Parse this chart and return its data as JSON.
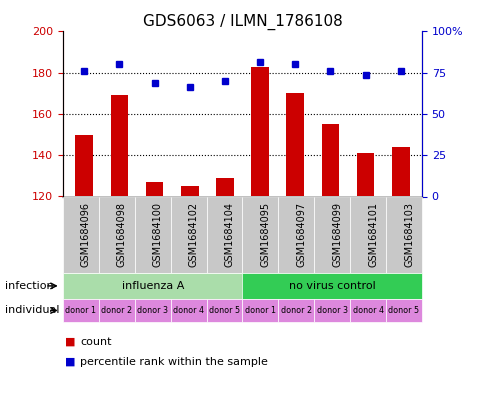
{
  "title": "GDS6063 / ILMN_1786108",
  "samples": [
    "GSM1684096",
    "GSM1684098",
    "GSM1684100",
    "GSM1684102",
    "GSM1684104",
    "GSM1684095",
    "GSM1684097",
    "GSM1684099",
    "GSM1684101",
    "GSM1684103"
  ],
  "counts": [
    150,
    169,
    127,
    125,
    129,
    183,
    170,
    155,
    141,
    144
  ],
  "percentiles": [
    181,
    184,
    175,
    173,
    176,
    185,
    184,
    181,
    179,
    181
  ],
  "ylim_left": [
    120,
    200
  ],
  "ylim_right": [
    0,
    100
  ],
  "yticks_left": [
    120,
    140,
    160,
    180,
    200
  ],
  "yticks_right": [
    0,
    25,
    50,
    75,
    100
  ],
  "ytick_labels_right": [
    "0",
    "25",
    "50",
    "75",
    "100%"
  ],
  "bar_color": "#cc0000",
  "dot_color": "#0000cc",
  "infection_groups": [
    {
      "label": "influenza A",
      "start": 0,
      "end": 5,
      "color": "#aaddaa"
    },
    {
      "label": "no virus control",
      "start": 5,
      "end": 10,
      "color": "#33cc55"
    }
  ],
  "individual_labels": [
    "donor 1",
    "donor 2",
    "donor 3",
    "donor 4",
    "donor 5",
    "donor 1",
    "donor 2",
    "donor 3",
    "donor 4",
    "donor 5"
  ],
  "individual_color": "#dd88dd",
  "sample_bg_color": "#c8c8c8",
  "infection_row_label": "infection",
  "individual_row_label": "individual",
  "legend_count_label": "count",
  "legend_percentile_label": "percentile rank within the sample",
  "title_fontsize": 11,
  "tick_fontsize": 8,
  "sample_label_fontsize": 7,
  "annotation_fontsize": 8,
  "bar_bottom": 120,
  "grid_yticks": [
    140,
    160,
    180
  ]
}
